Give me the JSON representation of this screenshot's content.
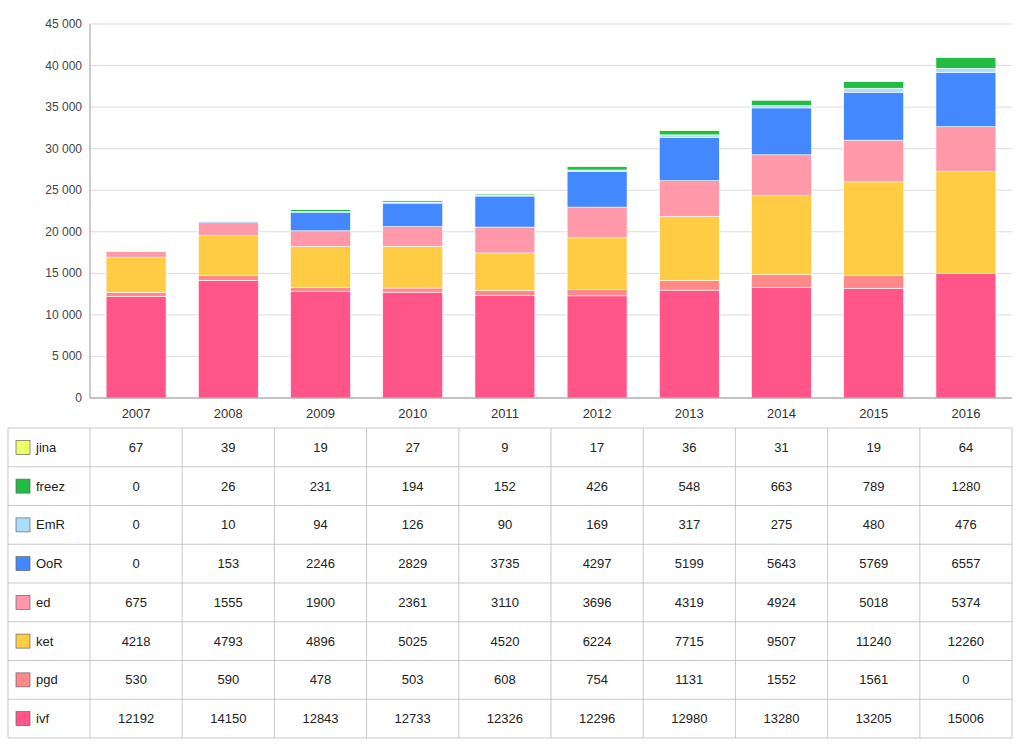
{
  "chart_data": {
    "type": "bar",
    "stacked": true,
    "categories": [
      "2007",
      "2008",
      "2009",
      "2010",
      "2011",
      "2012",
      "2013",
      "2014",
      "2015",
      "2016"
    ],
    "series": [
      {
        "name": "ivf",
        "color": "#FF5588",
        "values": [
          12192,
          14150,
          12843,
          12733,
          12326,
          12296,
          12980,
          13280,
          13205,
          15006
        ]
      },
      {
        "name": "pgd",
        "color": "#FF8888",
        "values": [
          530,
          590,
          478,
          503,
          608,
          754,
          1131,
          1552,
          1561,
          0
        ]
      },
      {
        "name": "ket",
        "color": "#FFCC44",
        "values": [
          4218,
          4793,
          4896,
          5025,
          4520,
          6224,
          7715,
          9507,
          11240,
          12260
        ]
      },
      {
        "name": "ed",
        "color": "#FF99AA",
        "values": [
          675,
          1555,
          1900,
          2361,
          3110,
          3696,
          4319,
          4924,
          5018,
          5374
        ]
      },
      {
        "name": "OoR",
        "color": "#4488FF",
        "values": [
          0,
          153,
          2246,
          2829,
          3735,
          4297,
          5199,
          5643,
          5769,
          6557
        ]
      },
      {
        "name": "EmR",
        "color": "#AADDFF",
        "values": [
          0,
          10,
          94,
          126,
          90,
          169,
          317,
          275,
          480,
          476
        ]
      },
      {
        "name": "freez",
        "color": "#22BB44",
        "values": [
          0,
          26,
          231,
          194,
          152,
          426,
          548,
          663,
          789,
          1280
        ]
      },
      {
        "name": "jina",
        "color": "#EEFF66",
        "values": [
          67,
          39,
          19,
          27,
          9,
          17,
          36,
          31,
          19,
          64
        ]
      }
    ],
    "ylim": [
      0,
      45000
    ],
    "yticks": [
      0,
      {
        "value": 5000,
        "label": "5 000"
      },
      {
        "value": 10000,
        "label": "10 000"
      },
      {
        "value": 15000,
        "label": "15 000"
      },
      {
        "value": 20000,
        "label": "20 000"
      },
      {
        "value": 25000,
        "label": "25 000"
      },
      {
        "value": 30000,
        "label": "30 000"
      },
      {
        "value": 35000,
        "label": "35 000"
      },
      {
        "value": 40000,
        "label": "40 000"
      },
      {
        "value": 45000,
        "label": "45 000"
      }
    ],
    "grid": true,
    "legend": "bottom"
  }
}
